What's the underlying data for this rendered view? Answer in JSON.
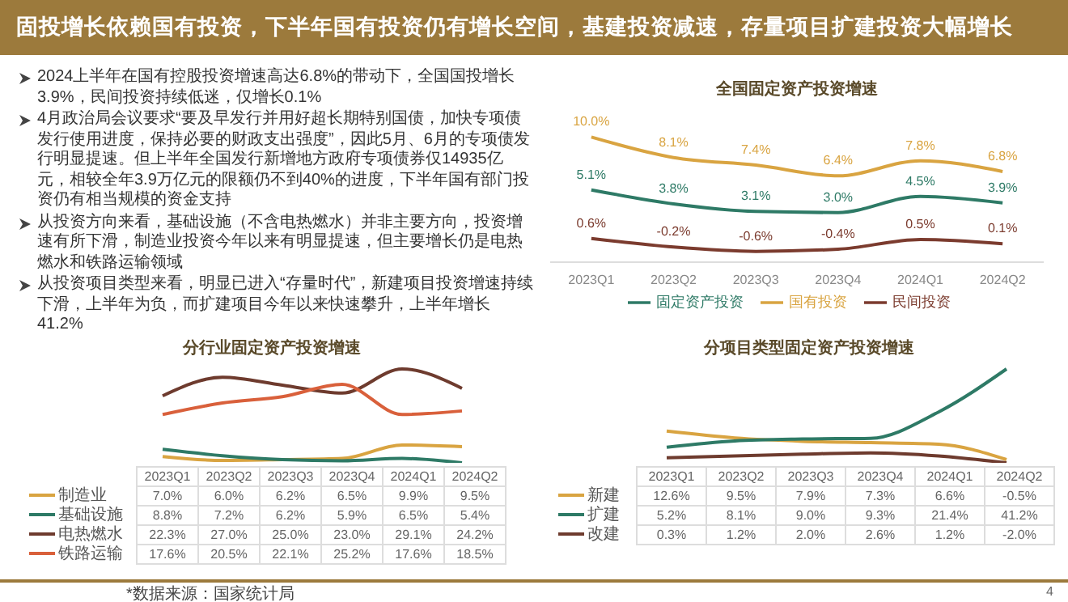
{
  "chart_data": [
    {
      "type": "other",
      "title": "固投增长依赖国有投资，下半年国有投资仍有增长空间，基建投资减速，存量项目扩建投资大幅增长",
      "annotations": [
        "2024上半年在国有控股投资增速高达6.8%的带动下，全国国投增长3.9%，民间投资持续低迷，仅增长0.1%",
        "4月政治局会议要求“要及早发行并用好超长期特别国债，加快专项债发行使用进度，保持必要的财政支出强度”，因此5月、6月的专项债发行明显提速。但上半年全国发行新增地方政府专项债券仅14935亿元，相较全年3.9万亿元的限额仍不到40%的进度，下半年国有部门投资仍有相当规模的资金支持",
        "从投资方向来看，基础设施（不含电热燃水）并非主要方向，投资增速有所下滑，制造业投资今年以来有明显提速，但主要增长仍是电热燃水和铁路运输领域",
        "从投资项目类型来看，明显已进入“存量时代”，新建项目投资增速持续下滑，上半年为负，而扩建项目今年以来快速攀升，上半年增长41.2%"
      ]
    },
    {
      "type": "line",
      "title": "全国固定资产投资增速",
      "categories": [
        "2023Q1",
        "2023Q2",
        "2023Q3",
        "2023Q4",
        "2024Q1",
        "2024Q2"
      ],
      "legend": "bottom",
      "marker": "none",
      "line_style": "solid",
      "series": [
        {
          "name": "固定资产投资",
          "color": "#2e7a66",
          "values": [
            5.1,
            3.8,
            3.1,
            3.0,
            4.5,
            3.9
          ],
          "value_labels": [
            "5.1%",
            "3.8%",
            "3.1%",
            "3.0%",
            "4.5%",
            "3.9%"
          ]
        },
        {
          "name": "国有投资",
          "color": "#d9a441",
          "values": [
            10.0,
            8.1,
            7.4,
            6.4,
            7.8,
            6.8
          ],
          "value_labels": [
            "10.0%",
            "8.1%",
            "7.4%",
            "6.4%",
            "7.8%",
            "6.8%"
          ]
        },
        {
          "name": "民间投资",
          "color": "#7b3b2e",
          "values": [
            0.6,
            -0.2,
            -0.6,
            -0.4,
            0.5,
            0.1
          ],
          "value_labels": [
            "0.6%",
            "-0.2%",
            "-0.6%",
            "-0.4%",
            "0.5%",
            "0.1%"
          ]
        }
      ]
    },
    {
      "type": "line",
      "title": "分行业固定资产投资增速",
      "categories": [
        "2023Q1",
        "2023Q2",
        "2023Q3",
        "2023Q4",
        "2024Q1",
        "2024Q2"
      ],
      "legend": "bottom left",
      "marker": "none",
      "line_style": "solid",
      "annotations": [
        "*数据来源：国家统计局"
      ],
      "series": [
        {
          "name": "制造业",
          "color": "#d9a441",
          "values": [
            7.0,
            6.0,
            6.2,
            6.5,
            9.9,
            9.5
          ],
          "value_labels": [
            "7.0%",
            "6.0%",
            "6.2%",
            "6.5%",
            "9.9%",
            "9.5%"
          ]
        },
        {
          "name": "基础设施",
          "color": "#2e7a66",
          "values": [
            8.8,
            7.2,
            6.2,
            5.9,
            6.5,
            5.4
          ],
          "value_labels": [
            "8.8%",
            "7.2%",
            "6.2%",
            "5.9%",
            "6.5%",
            "5.4%"
          ]
        },
        {
          "name": "电热燃水",
          "color": "#6e3b2e",
          "values": [
            22.3,
            27.0,
            25.0,
            23.0,
            29.1,
            24.2
          ],
          "value_labels": [
            "22.3%",
            "27.0%",
            "25.0%",
            "23.0%",
            "29.1%",
            "24.2%"
          ]
        },
        {
          "name": "铁路运输",
          "color": "#d9603b",
          "values": [
            17.6,
            20.5,
            22.1,
            25.2,
            17.6,
            18.5
          ],
          "value_labels": [
            "17.6%",
            "20.5%",
            "22.1%",
            "25.2%",
            "17.6%",
            "18.5%"
          ]
        }
      ]
    },
    {
      "type": "line",
      "title": "分项目类型固定资产投资增速",
      "categories": [
        "2023Q1",
        "2023Q2",
        "2023Q3",
        "2023Q4",
        "2024Q1",
        "2024Q2"
      ],
      "legend": "bottom left",
      "marker": "none",
      "line_style": "solid",
      "annotations": [
        "4"
      ],
      "series": [
        {
          "name": "新建",
          "color": "#d9a441",
          "values": [
            12.6,
            9.5,
            7.9,
            7.3,
            6.6,
            -0.5
          ],
          "value_labels": [
            "12.6%",
            "9.5%",
            "7.9%",
            "7.3%",
            "6.6%",
            "-0.5%"
          ]
        },
        {
          "name": "扩建",
          "color": "#2e7a66",
          "values": [
            5.2,
            8.1,
            9.0,
            9.3,
            21.4,
            41.2
          ],
          "value_labels": [
            "5.2%",
            "8.1%",
            "9.0%",
            "9.3%",
            "21.4%",
            "41.2%"
          ]
        },
        {
          "name": "改建",
          "color": "#6e3b2e",
          "values": [
            0.3,
            1.2,
            2.0,
            2.6,
            1.2,
            -2.0
          ],
          "value_labels": [
            "0.3%",
            "1.2%",
            "2.0%",
            "2.6%",
            "1.2%",
            "-2.0%"
          ]
        }
      ]
    }
  ]
}
